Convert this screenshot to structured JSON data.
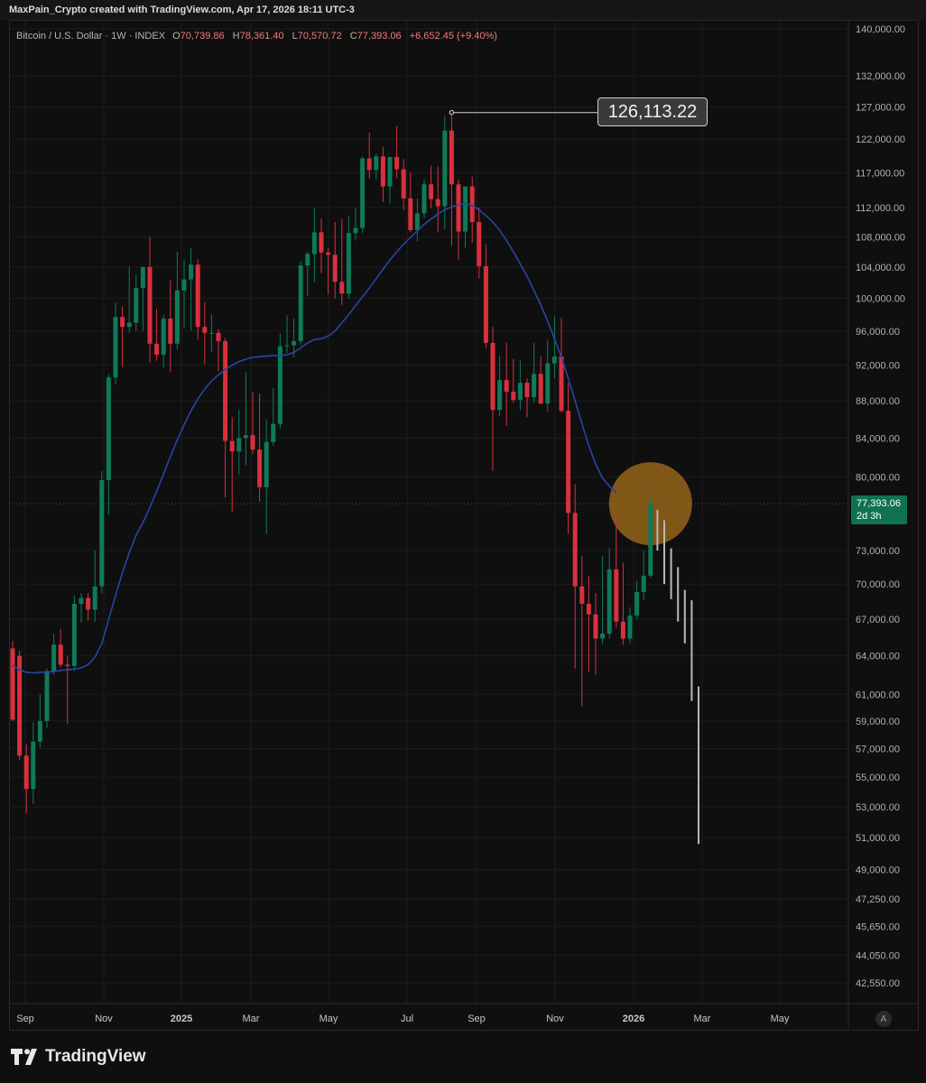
{
  "header": {
    "attribution": "MaxPain_Crypto created with TradingView.com, Apr 17, 2026 18:11 UTC-3",
    "symbol": "Bitcoin / U.S. Dollar · 1W · INDEX",
    "open_label": "O",
    "open": "70,739.86",
    "high_label": "H",
    "high": "78,361.40",
    "low_label": "L",
    "low": "70,570.72",
    "close_label": "C",
    "close": "77,393.06",
    "change": "+6,652.45 (+9.40%)"
  },
  "annotations": {
    "peak_label": "126,113.22",
    "last_price": "77,393.06",
    "countdown": "2d 3h",
    "auto_button": "A"
  },
  "footer": {
    "brand": "TradingView"
  },
  "colors": {
    "up": "#0f7a5a",
    "down": "#d9303e",
    "ma_line": "#2944a8",
    "projection": "#b8b8b8",
    "highlight_circle": "#a8701c",
    "background": "#0f0f0f"
  },
  "chart_data": {
    "type": "candlestick",
    "title": "",
    "timeframe": "1W",
    "x_tick_labels": [
      "Sep",
      "Nov",
      "2025",
      "Mar",
      "May",
      "Jul",
      "Sep",
      "Nov",
      "2026",
      "Mar",
      "May"
    ],
    "y_tick_labels": [
      "140,000.00",
      "132,000.00",
      "127,000.00",
      "122,000.00",
      "117,000.00",
      "112,000.00",
      "108,000.00",
      "104,000.00",
      "100,000.00",
      "96,000.00",
      "92,000.00",
      "88,000.00",
      "84,000.00",
      "80,000.00",
      "73,000.00",
      "70,000.00",
      "67,000.00",
      "64,000.00",
      "61,000.00",
      "59,000.00",
      "57,000.00",
      "55,000.00",
      "53,000.00",
      "51,000.00",
      "49,000.00",
      "47,250.00",
      "45,650.00",
      "44,050.00",
      "42,550.00"
    ],
    "y_scale": "log",
    "ylim": [
      41500,
      141000
    ],
    "candles": [
      {
        "o": 64600,
        "h": 65200,
        "l": 59000,
        "c": 59100
      },
      {
        "o": 64000,
        "h": 64400,
        "l": 56200,
        "c": 56500
      },
      {
        "o": 56500,
        "h": 57300,
        "l": 52600,
        "c": 54200
      },
      {
        "o": 54200,
        "h": 58900,
        "l": 53200,
        "c": 57500
      },
      {
        "o": 57500,
        "h": 61000,
        "l": 57100,
        "c": 59000
      },
      {
        "o": 59000,
        "h": 63000,
        "l": 58500,
        "c": 62800
      },
      {
        "o": 62800,
        "h": 65800,
        "l": 62500,
        "c": 64900
      },
      {
        "o": 64900,
        "h": 66200,
        "l": 63100,
        "c": 63300
      },
      {
        "o": 63300,
        "h": 64000,
        "l": 58800,
        "c": 63200
      },
      {
        "o": 63200,
        "h": 69000,
        "l": 62800,
        "c": 68300
      },
      {
        "o": 68300,
        "h": 69200,
        "l": 66700,
        "c": 68800
      },
      {
        "o": 68800,
        "h": 69200,
        "l": 66900,
        "c": 67800
      },
      {
        "o": 67800,
        "h": 73000,
        "l": 66800,
        "c": 69800
      },
      {
        "o": 69800,
        "h": 80600,
        "l": 69200,
        "c": 79700
      },
      {
        "o": 79700,
        "h": 91000,
        "l": 76300,
        "c": 90600
      },
      {
        "o": 90600,
        "h": 99500,
        "l": 89800,
        "c": 97700
      },
      {
        "o": 97700,
        "h": 99000,
        "l": 91800,
        "c": 96500
      },
      {
        "o": 96500,
        "h": 104000,
        "l": 95800,
        "c": 97000
      },
      {
        "o": 97000,
        "h": 103000,
        "l": 96000,
        "c": 101300
      },
      {
        "o": 101300,
        "h": 104000,
        "l": 96000,
        "c": 104000
      },
      {
        "o": 104000,
        "h": 108000,
        "l": 92300,
        "c": 94500
      },
      {
        "o": 94500,
        "h": 98700,
        "l": 92500,
        "c": 93200
      },
      {
        "o": 93200,
        "h": 98000,
        "l": 91700,
        "c": 97500
      },
      {
        "o": 97500,
        "h": 102300,
        "l": 91200,
        "c": 94500
      },
      {
        "o": 94500,
        "h": 106000,
        "l": 93800,
        "c": 101000
      },
      {
        "o": 101000,
        "h": 105000,
        "l": 96400,
        "c": 102400
      },
      {
        "o": 102400,
        "h": 106500,
        "l": 96000,
        "c": 104300
      },
      {
        "o": 104300,
        "h": 105000,
        "l": 95000,
        "c": 96500
      },
      {
        "o": 96500,
        "h": 99500,
        "l": 92100,
        "c": 95800
      },
      {
        "o": 95800,
        "h": 98000,
        "l": 93500,
        "c": 95800
      },
      {
        "o": 95800,
        "h": 96200,
        "l": 91300,
        "c": 94800
      },
      {
        "o": 94800,
        "h": 95200,
        "l": 78000,
        "c": 83700
      },
      {
        "o": 83700,
        "h": 86200,
        "l": 76600,
        "c": 82600
      },
      {
        "o": 82600,
        "h": 87000,
        "l": 80200,
        "c": 84000
      },
      {
        "o": 84000,
        "h": 91200,
        "l": 81200,
        "c": 84300
      },
      {
        "o": 84300,
        "h": 89000,
        "l": 82300,
        "c": 82800
      },
      {
        "o": 82800,
        "h": 88800,
        "l": 77600,
        "c": 79000
      },
      {
        "o": 79000,
        "h": 86000,
        "l": 74500,
        "c": 83600
      },
      {
        "o": 83600,
        "h": 89400,
        "l": 83200,
        "c": 85500
      },
      {
        "o": 85500,
        "h": 95700,
        "l": 85000,
        "c": 94200
      },
      {
        "o": 94200,
        "h": 97900,
        "l": 93400,
        "c": 94300
      },
      {
        "o": 94300,
        "h": 97500,
        "l": 92900,
        "c": 94800
      },
      {
        "o": 94800,
        "h": 104800,
        "l": 94300,
        "c": 104200
      },
      {
        "o": 104200,
        "h": 106000,
        "l": 100300,
        "c": 105700
      },
      {
        "o": 105700,
        "h": 111900,
        "l": 102000,
        "c": 108600
      },
      {
        "o": 108600,
        "h": 110500,
        "l": 103200,
        "c": 105900
      },
      {
        "o": 105900,
        "h": 106500,
        "l": 100500,
        "c": 105600
      },
      {
        "o": 105600,
        "h": 110000,
        "l": 100000,
        "c": 102100
      },
      {
        "o": 102100,
        "h": 110400,
        "l": 99200,
        "c": 100600
      },
      {
        "o": 100600,
        "h": 110800,
        "l": 100000,
        "c": 108500
      },
      {
        "o": 108500,
        "h": 112000,
        "l": 107500,
        "c": 109200
      },
      {
        "o": 109200,
        "h": 119400,
        "l": 108500,
        "c": 119100
      },
      {
        "o": 119100,
        "h": 123000,
        "l": 116100,
        "c": 117400
      },
      {
        "o": 117400,
        "h": 119800,
        "l": 116000,
        "c": 119400
      },
      {
        "o": 119400,
        "h": 120800,
        "l": 112800,
        "c": 115000
      },
      {
        "o": 115000,
        "h": 119200,
        "l": 112500,
        "c": 119300
      },
      {
        "o": 119300,
        "h": 124000,
        "l": 116200,
        "c": 117500
      },
      {
        "o": 117500,
        "h": 119000,
        "l": 111700,
        "c": 113300
      },
      {
        "o": 113300,
        "h": 117000,
        "l": 108600,
        "c": 108900
      },
      {
        "o": 108900,
        "h": 113300,
        "l": 107400,
        "c": 111200
      },
      {
        "o": 111200,
        "h": 116000,
        "l": 110500,
        "c": 115300
      },
      {
        "o": 115300,
        "h": 118000,
        "l": 111900,
        "c": 113200
      },
      {
        "o": 113200,
        "h": 117900,
        "l": 108600,
        "c": 112200
      },
      {
        "o": 112200,
        "h": 125600,
        "l": 109000,
        "c": 123300
      },
      {
        "o": 123300,
        "h": 126113.22,
        "l": 106800,
        "c": 115300
      },
      {
        "o": 115300,
        "h": 116000,
        "l": 104900,
        "c": 108700
      },
      {
        "o": 108700,
        "h": 115000,
        "l": 106500,
        "c": 115000
      },
      {
        "o": 115000,
        "h": 116400,
        "l": 107200,
        "c": 110000
      },
      {
        "o": 110000,
        "h": 112000,
        "l": 102500,
        "c": 104100
      },
      {
        "o": 104100,
        "h": 107000,
        "l": 94000,
        "c": 94600
      },
      {
        "o": 94600,
        "h": 96500,
        "l": 80600,
        "c": 87000
      },
      {
        "o": 87000,
        "h": 93100,
        "l": 86300,
        "c": 90300
      },
      {
        "o": 90300,
        "h": 94600,
        "l": 85300,
        "c": 89000
      },
      {
        "o": 89000,
        "h": 92700,
        "l": 87800,
        "c": 88100
      },
      {
        "o": 88100,
        "h": 92600,
        "l": 87000,
        "c": 90000
      },
      {
        "o": 90000,
        "h": 90500,
        "l": 86200,
        "c": 88400
      },
      {
        "o": 88400,
        "h": 94600,
        "l": 87800,
        "c": 91000
      },
      {
        "o": 91000,
        "h": 93000,
        "l": 87600,
        "c": 87700
      },
      {
        "o": 87700,
        "h": 95000,
        "l": 86800,
        "c": 92200
      },
      {
        "o": 92200,
        "h": 97800,
        "l": 90500,
        "c": 93000
      },
      {
        "o": 93000,
        "h": 97600,
        "l": 86700,
        "c": 86900
      },
      {
        "o": 86900,
        "h": 90000,
        "l": 74500,
        "c": 76500
      },
      {
        "o": 76500,
        "h": 79300,
        "l": 63000,
        "c": 69800
      },
      {
        "o": 69800,
        "h": 72500,
        "l": 60100,
        "c": 68300
      },
      {
        "o": 68300,
        "h": 70700,
        "l": 62700,
        "c": 67400
      },
      {
        "o": 67400,
        "h": 69200,
        "l": 62500,
        "c": 65400
      },
      {
        "o": 65400,
        "h": 72500,
        "l": 65000,
        "c": 65800
      },
      {
        "o": 65800,
        "h": 73200,
        "l": 65400,
        "c": 71300
      },
      {
        "o": 71300,
        "h": 76500,
        "l": 66300,
        "c": 66800
      },
      {
        "o": 66800,
        "h": 71900,
        "l": 64900,
        "c": 65400
      },
      {
        "o": 65400,
        "h": 68000,
        "l": 65000,
        "c": 67300
      },
      {
        "o": 67300,
        "h": 70300,
        "l": 67000,
        "c": 69300
      },
      {
        "o": 69300,
        "h": 73000,
        "l": 68600,
        "c": 70740
      },
      {
        "o": 70739.86,
        "h": 78361.4,
        "l": 70570.72,
        "c": 77393.06
      }
    ],
    "moving_average": [
      63250,
      62900,
      62700,
      62650,
      62700,
      62720,
      62750,
      62850,
      62900,
      62950,
      63050,
      63300,
      63900,
      65000,
      67000,
      69000,
      71000,
      72800,
      74400,
      75600,
      77000,
      78600,
      80300,
      82100,
      83800,
      85400,
      86900,
      88200,
      89300,
      90200,
      90900,
      91500,
      92000,
      92400,
      92700,
      92900,
      93000,
      93050,
      93100,
      93100,
      93200,
      93500,
      94000,
      94600,
      95000,
      95100,
      95400,
      96000,
      97000,
      98000,
      99100,
      100200,
      101300,
      102500,
      103700,
      104900,
      106000,
      107000,
      107900,
      108800,
      109700,
      110400,
      111100,
      111700,
      112100,
      112400,
      112600,
      112300,
      111700,
      110900,
      110000,
      108900,
      107500,
      106000,
      104400,
      102800,
      101000,
      99200,
      97200,
      95100,
      92900,
      90500,
      88000,
      85500,
      83200,
      81300,
      79900,
      79100,
      78400
    ],
    "projection": [
      {
        "top": 76800,
        "bottom": 73000
      },
      {
        "top": 75800,
        "bottom": 70000
      },
      {
        "top": 73200,
        "bottom": 68700
      },
      {
        "top": 71500,
        "bottom": 66800
      },
      {
        "top": 69500,
        "bottom": 65000
      },
      {
        "top": 68600,
        "bottom": 60500
      },
      {
        "top": 61600,
        "bottom": 50600
      }
    ],
    "peak": 126113.22,
    "current_price": 77393.06,
    "highlight_level": 77393.06,
    "grid": true,
    "legend": "none"
  }
}
